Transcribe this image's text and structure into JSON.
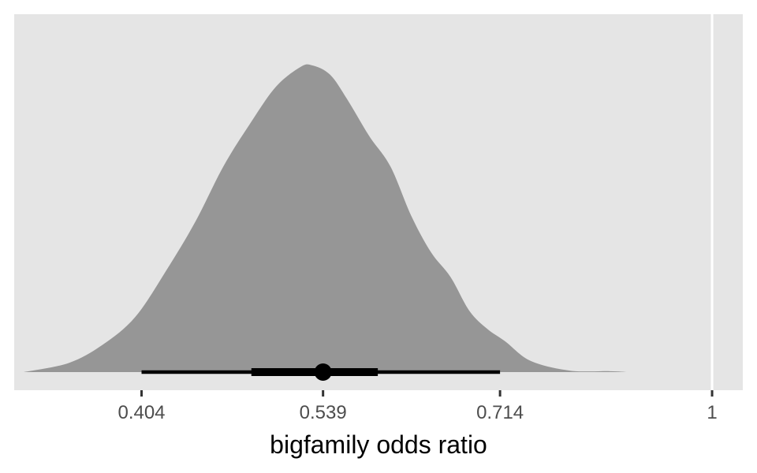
{
  "chart_data": {
    "type": "density-halfeye",
    "xlabel": "bigfamily odds ratio",
    "ylabel": "",
    "title": "",
    "x_scale": "log",
    "xlim": [
      0.33,
      1.05
    ],
    "x_ticks": [
      {
        "value": 0.404,
        "label": "0.404"
      },
      {
        "value": 0.539,
        "label": "0.539"
      },
      {
        "value": 0.714,
        "label": "0.714"
      },
      {
        "value": 1,
        "label": "1"
      }
    ],
    "reference_line": 1,
    "density": {
      "x": [
        0.335,
        0.36,
        0.38,
        0.4,
        0.42,
        0.44,
        0.46,
        0.48,
        0.5,
        0.52,
        0.53,
        0.545,
        0.56,
        0.58,
        0.6,
        0.62,
        0.64,
        0.66,
        0.68,
        0.7,
        0.72,
        0.75,
        0.8,
        0.85,
        0.875
      ],
      "y": [
        0.0,
        0.03,
        0.09,
        0.18,
        0.33,
        0.49,
        0.67,
        0.81,
        0.93,
        0.995,
        1.0,
        0.97,
        0.89,
        0.77,
        0.67,
        0.51,
        0.39,
        0.31,
        0.2,
        0.14,
        0.1,
        0.036,
        0.004,
        0.003,
        0.0
      ]
    },
    "point_estimate": 0.539,
    "interval_inner": [
      0.481,
      0.588
    ],
    "interval_outer": [
      0.404,
      0.714
    ],
    "colors": {
      "panel_background": "#e5e5e5",
      "density_fill": "#969696",
      "interval": "#000000",
      "reference_line": "#ffffff",
      "tick_label": "#4d4d4d"
    }
  }
}
